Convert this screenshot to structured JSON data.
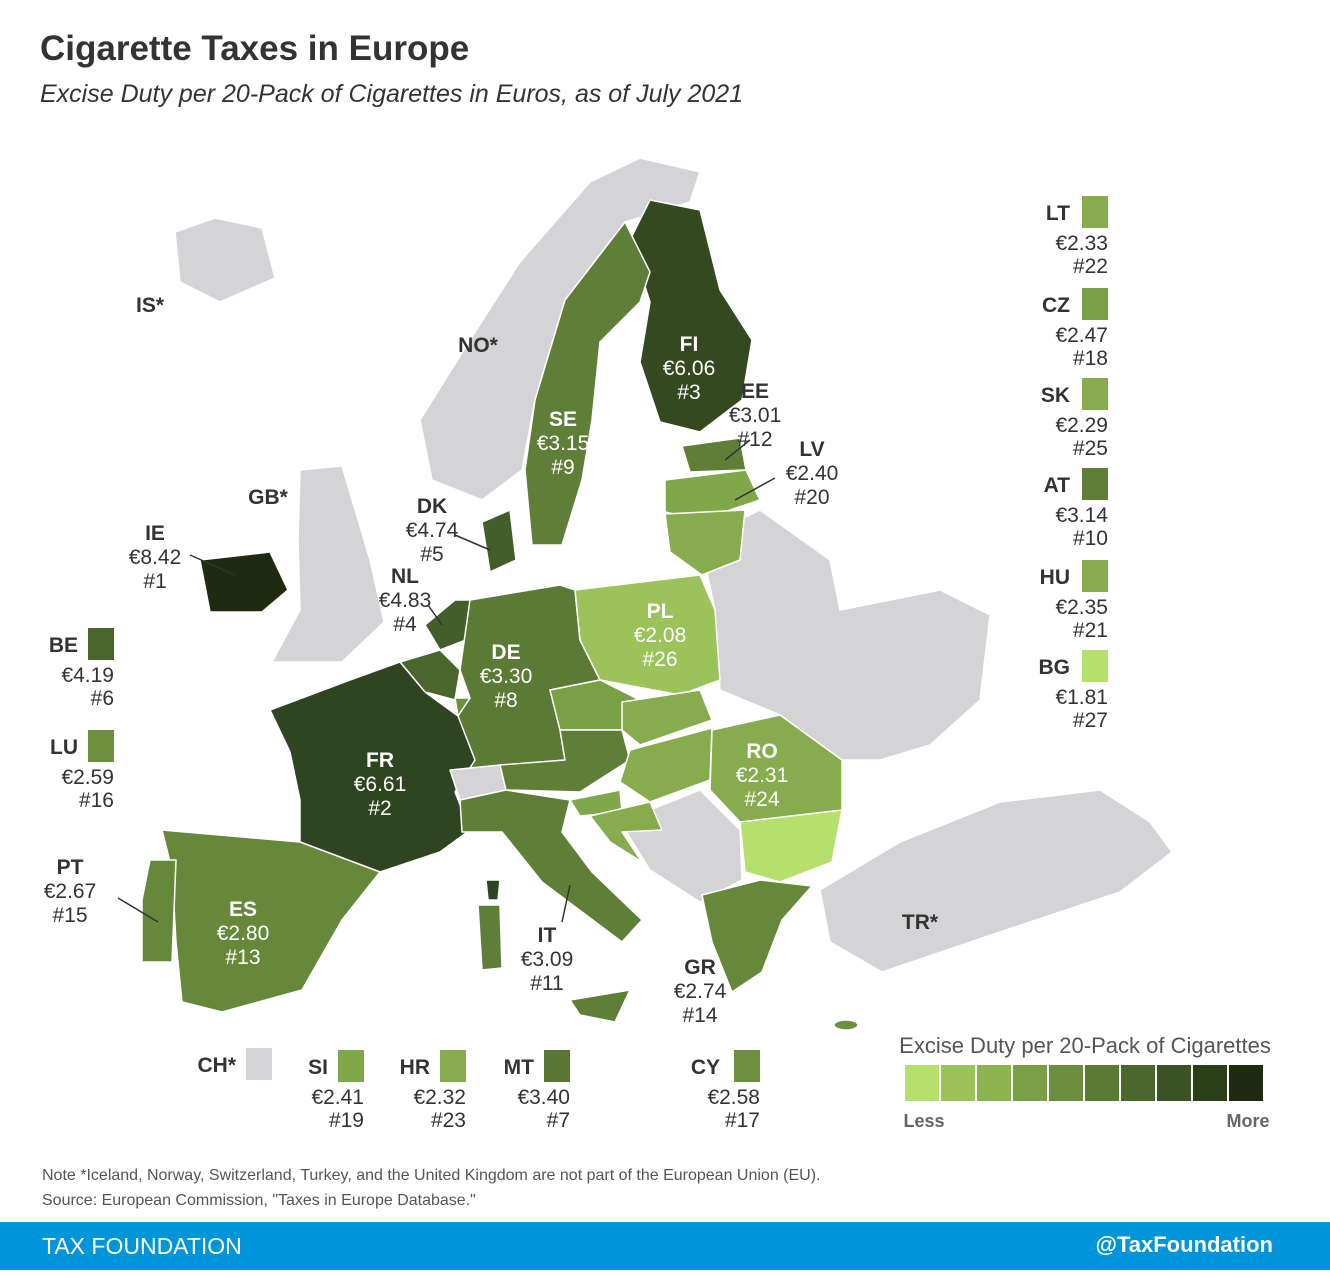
{
  "header": {
    "title": "Cigarette Taxes in Europe",
    "subtitle": "Excise Duty per 20-Pack of Cigarettes in Euros, as of July 2021"
  },
  "countries": [
    {
      "code": "IS*",
      "color": "#d4d4d6"
    },
    {
      "code": "NO*",
      "color": "#d4d4d6"
    },
    {
      "code": "GB*",
      "color": "#d4d4d6"
    },
    {
      "code": "TR*",
      "color": "#d4d4d6"
    },
    {
      "code": "IE",
      "value": "€8.42",
      "rank": "#1",
      "color": "#1f2b10"
    },
    {
      "code": "FI",
      "value": "€6.06",
      "rank": "#3",
      "color": "#34491f"
    },
    {
      "code": "SE",
      "value": "€3.15",
      "rank": "#9",
      "color": "#5f7f38"
    },
    {
      "code": "EE",
      "value": "€3.01",
      "rank": "#12",
      "color": "#5f7f38"
    },
    {
      "code": "LV",
      "value": "€2.40",
      "rank": "#20",
      "color": "#80a74a"
    },
    {
      "code": "DK",
      "value": "€4.74",
      "rank": "#5",
      "color": "#435e2a"
    },
    {
      "code": "NL",
      "value": "€4.83",
      "rank": "#4",
      "color": "#435e2a"
    },
    {
      "code": "DE",
      "value": "€3.30",
      "rank": "#8",
      "color": "#5b7a35"
    },
    {
      "code": "PL",
      "value": "€2.08",
      "rank": "#26",
      "color": "#9cc35a"
    },
    {
      "code": "FR",
      "value": "€6.61",
      "rank": "#2",
      "color": "#2f4420"
    },
    {
      "code": "RO",
      "value": "€2.31",
      "rank": "#24",
      "color": "#86ac4d"
    },
    {
      "code": "ES",
      "value": "€2.80",
      "rank": "#13",
      "color": "#66883b"
    },
    {
      "code": "PT",
      "value": "€2.67",
      "rank": "#15",
      "color": "#66883b"
    },
    {
      "code": "IT",
      "value": "€3.09",
      "rank": "#11",
      "color": "#5f7f38"
    },
    {
      "code": "GR",
      "value": "€2.74",
      "rank": "#14",
      "color": "#66883b"
    },
    {
      "code": "LT",
      "value": "€2.33",
      "rank": "#22",
      "color": "#86ac4d"
    },
    {
      "code": "CZ",
      "value": "€2.47",
      "rank": "#18",
      "color": "#7aa046"
    },
    {
      "code": "SK",
      "value": "€2.29",
      "rank": "#25",
      "color": "#86ac4d"
    },
    {
      "code": "AT",
      "value": "€3.14",
      "rank": "#10",
      "color": "#5f7f38"
    },
    {
      "code": "HU",
      "value": "€2.35",
      "rank": "#21",
      "color": "#86ac4d"
    },
    {
      "code": "BG",
      "value": "€1.81",
      "rank": "#27",
      "color": "#b5e06e"
    },
    {
      "code": "BE",
      "value": "€4.19",
      "rank": "#6",
      "color": "#4a662c"
    },
    {
      "code": "LU",
      "value": "€2.59",
      "rank": "#16",
      "color": "#6d903f"
    },
    {
      "code": "CH*",
      "color": "#d4d4d6"
    },
    {
      "code": "SI",
      "value": "€2.41",
      "rank": "#19",
      "color": "#80a74a"
    },
    {
      "code": "HR",
      "value": "€2.32",
      "rank": "#23",
      "color": "#86ac4d"
    },
    {
      "code": "MT",
      "value": "€3.40",
      "rank": "#7",
      "color": "#587734"
    },
    {
      "code": "CY",
      "value": "€2.58",
      "rank": "#17",
      "color": "#6d903f"
    }
  ],
  "scale": {
    "title": "Excise Duty per 20-Pack of Cigarettes",
    "colors": [
      "#b5e06e",
      "#9cc35a",
      "#8bb350",
      "#7aa046",
      "#6b8d3e",
      "#5b7a35",
      "#4a662c",
      "#3b5324",
      "#2c3f1b",
      "#1f2b10"
    ],
    "low": "Less",
    "high": "More"
  },
  "footer": {
    "note": "Note *Iceland, Norway, Switzerland, Turkey, and the United Kingdom are not part of the European Union (EU).",
    "source": "Source: European Commission, \"Taxes in Europe Database.\"",
    "brand": "TAX FOUNDATION",
    "handle": "@TaxFoundation"
  }
}
